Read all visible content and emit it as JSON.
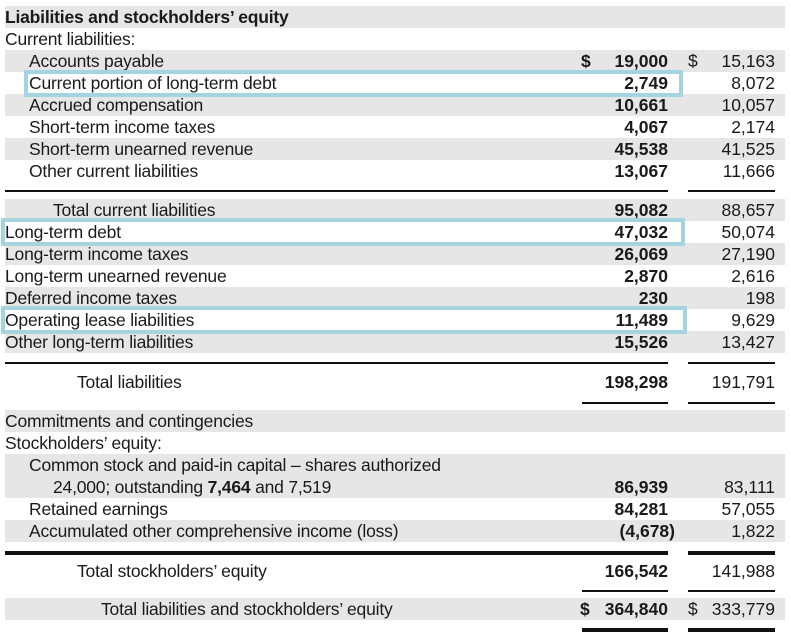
{
  "accent_box_color": "#a3d4df",
  "rows": [
    {
      "label": "Liabilities and stockholders’ equity",
      "bold": true,
      "indent": 0,
      "shade": true
    },
    {
      "label": "Current liabilities:",
      "indent": 0
    },
    {
      "label": "Accounts payable",
      "indent": 1,
      "shade": true,
      "cur": "19,000",
      "prior": "15,163",
      "dollar": true
    },
    {
      "label": "Current portion of long-term debt",
      "indent": 1,
      "cur": "2,749",
      "prior": "8,072",
      "highlight": true
    },
    {
      "label": "Accrued compensation",
      "indent": 1,
      "shade": true,
      "cur": "10,661",
      "prior": "10,057"
    },
    {
      "label": "Short-term income taxes",
      "indent": 1,
      "cur": "4,067",
      "prior": "2,174"
    },
    {
      "label": "Short-term unearned revenue",
      "indent": 1,
      "shade": true,
      "cur": "45,538",
      "prior": "41,525"
    },
    {
      "label": "Other current liabilities",
      "indent": 1,
      "cur": "13,067",
      "prior": "11,666"
    },
    {
      "label": "Total current liabilities",
      "indent": 2,
      "shade": true,
      "cur": "95,082",
      "prior": "88,657"
    },
    {
      "label": "Long-term debt",
      "indent": 0,
      "cur": "47,032",
      "prior": "50,074",
      "highlight": true
    },
    {
      "label": "Long-term income taxes",
      "indent": 0,
      "shade": true,
      "cur": "26,069",
      "prior": "27,190"
    },
    {
      "label": "Long-term unearned revenue",
      "indent": 0,
      "cur": "2,870",
      "prior": "2,616"
    },
    {
      "label": "Deferred income taxes",
      "indent": 0,
      "shade": true,
      "cur": "230",
      "prior": "198"
    },
    {
      "label": "Operating lease liabilities",
      "indent": 0,
      "cur": "11,489",
      "prior": "9,629",
      "highlight": true
    },
    {
      "label": "Other long-term liabilities",
      "indent": 0,
      "shade": true,
      "cur": "15,526",
      "prior": "13,427"
    },
    {
      "label": "Total liabilities",
      "indent": 3,
      "cur": "198,298",
      "prior": "191,791"
    },
    {
      "label": "Commitments and contingencies",
      "indent": 0,
      "shade": true
    },
    {
      "label": "Stockholders’ equity:",
      "indent": 0
    },
    {
      "label": "Common stock and paid-in capital – shares authorized",
      "label2_pre": "24,000; outstanding ",
      "label2_bold": "7,464",
      "label2_post": " and 7,519",
      "indent": 1,
      "shade": true,
      "cur": "86,939",
      "prior": "83,111"
    },
    {
      "label": "Retained earnings",
      "indent": 1,
      "cur": "84,281",
      "prior": "57,055"
    },
    {
      "label": "Accumulated other comprehensive income (loss)",
      "indent": 1,
      "shade": true,
      "cur": "(4,678)",
      "prior": "1,822",
      "paren": true
    },
    {
      "label": "Total stockholders’ equity",
      "indent": 3,
      "cur": "166,542",
      "prior": "141,988"
    },
    {
      "label": "Total liabilities and stockholders’ equity",
      "indent": 4,
      "shade": true,
      "cur": "364,840",
      "prior": "333,779",
      "dollar": true
    }
  ],
  "currency_symbol": "$"
}
